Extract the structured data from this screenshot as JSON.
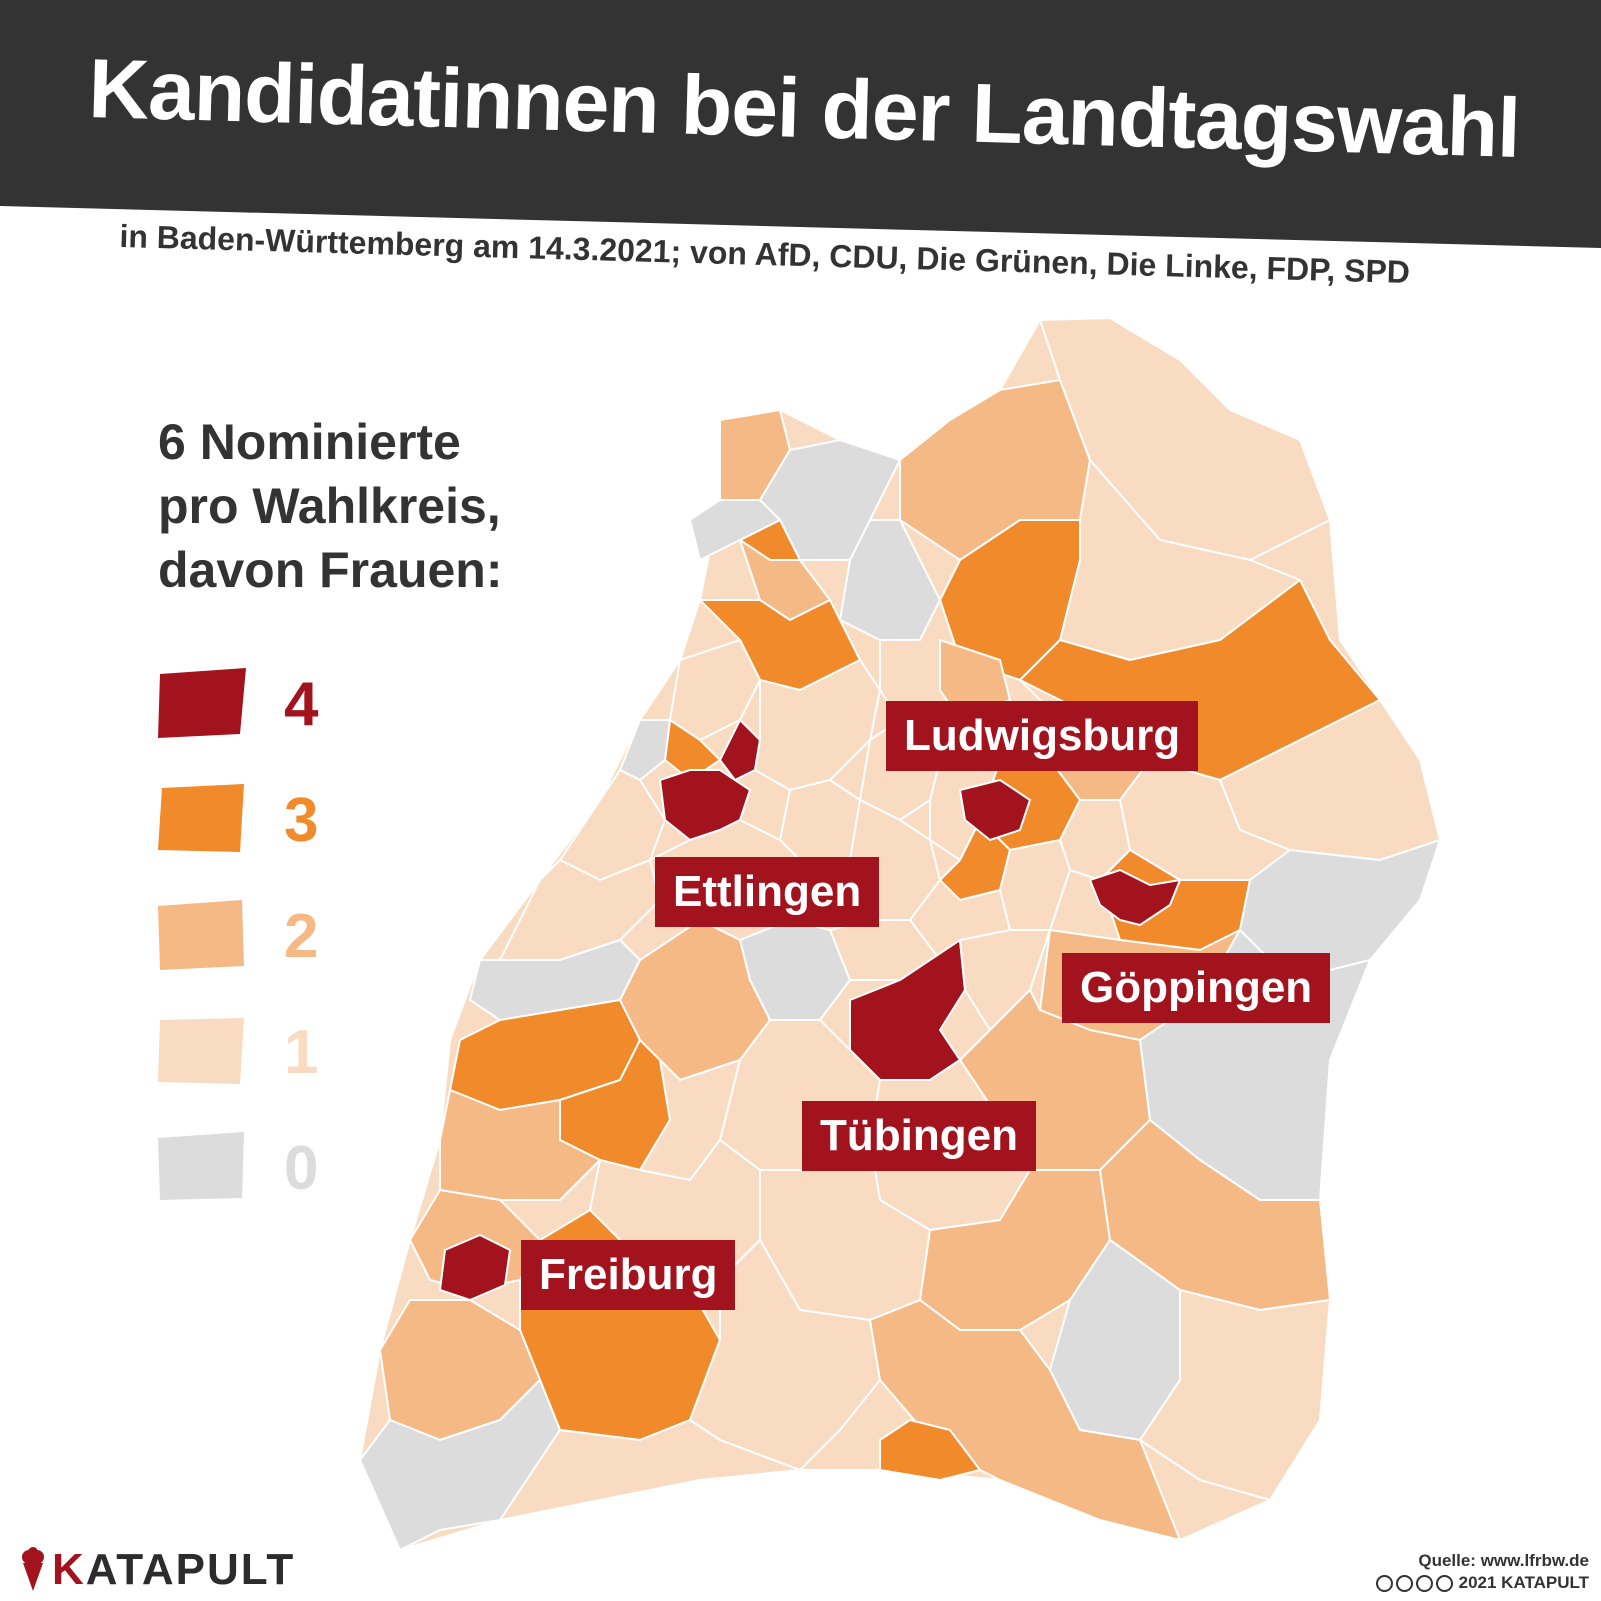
{
  "title": "Kandidatinnen bei der Landtagswahl",
  "subtitle": "in Baden-Württemberg am 14.3.2021; von AfD, CDU, Die Grünen, Die Linke, FDP, SPD",
  "legend": {
    "heading": [
      "6 Nominierte",
      "pro Wahlkreis,",
      "davon Frauen:"
    ],
    "items": [
      {
        "value": "4",
        "color": "#a3131e"
      },
      {
        "value": "3",
        "color": "#f18a2b"
      },
      {
        "value": "2",
        "color": "#f5b986"
      },
      {
        "value": "1",
        "color": "#f9dbc2"
      },
      {
        "value": "0",
        "color": "#dcdcdc"
      }
    ]
  },
  "labels": {
    "ludwigsburg": "Ludwigsburg",
    "ettlingen": "Ettlingen",
    "goeppingen": "Göppingen",
    "tuebingen": "Tübingen",
    "freiburg": "Freiburg"
  },
  "brand": {
    "k": "K",
    "rest": "ATAPULT"
  },
  "source": {
    "line1": "Quelle: www.lfrbw.de",
    "line2": "2021 KATAPULT"
  },
  "icons": [
    "ice-cream-logo-icon",
    "creative-commons-icons"
  ]
}
